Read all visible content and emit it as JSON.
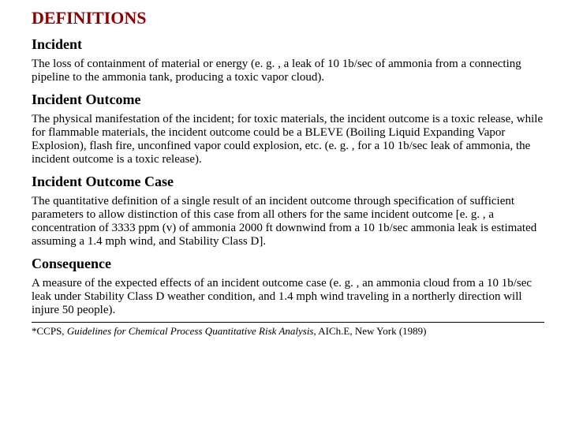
{
  "title": "DEFINITIONS",
  "sections": [
    {
      "heading": "Incident",
      "body": "The loss of containment of material or energy (e. g. , a leak of 10 1b/sec of ammonia from a connecting pipeline to the ammonia tank, producing a toxic vapor cloud)."
    },
    {
      "heading": "Incident Outcome",
      "body": "The physical manifestation of the incident; for toxic materials, the incident outcome is a toxic release, while for flammable materials, the incident outcome could be a BLEVE (Boiling Liquid Expanding Vapor Explosion), flash fire, unconfined vapor could explosion, etc. (e. g. , for a 10 1b/sec leak of ammonia, the incident outcome is a toxic release)."
    },
    {
      "heading": "Incident Outcome Case",
      "body": "The quantitative definition of a single result of an incident outcome through specification of sufficient parameters to allow distinction of this case from all others for the same incident outcome [e. g. , a concentration of 3333 ppm (v) of ammonia 2000 ft downwind from a 10 1b/sec ammonia leak is estimated assuming a 1.4 mph wind, and Stability Class D]."
    },
    {
      "heading": "Consequence",
      "body": "A measure of the expected effects of an incident outcome case (e. g. , an ammonia cloud from a 10 1b/sec leak under Stability Class D weather condition, and 1.4 mph wind traveling in a northerly direction will injure 50 people)."
    }
  ],
  "footnote": {
    "prefix": "*CCPS, ",
    "italic": "Guidelines for Chemical Process Quantitative Risk Analysis",
    "suffix": ", AICh.E, New York (1989)"
  },
  "colors": {
    "title_color": "#8b0000",
    "text_color": "#000000",
    "background": "#ffffff"
  },
  "typography": {
    "font_family": "Times New Roman",
    "title_fontsize": 22,
    "heading_fontsize": 18,
    "body_fontsize": 15,
    "footnote_fontsize": 13
  }
}
